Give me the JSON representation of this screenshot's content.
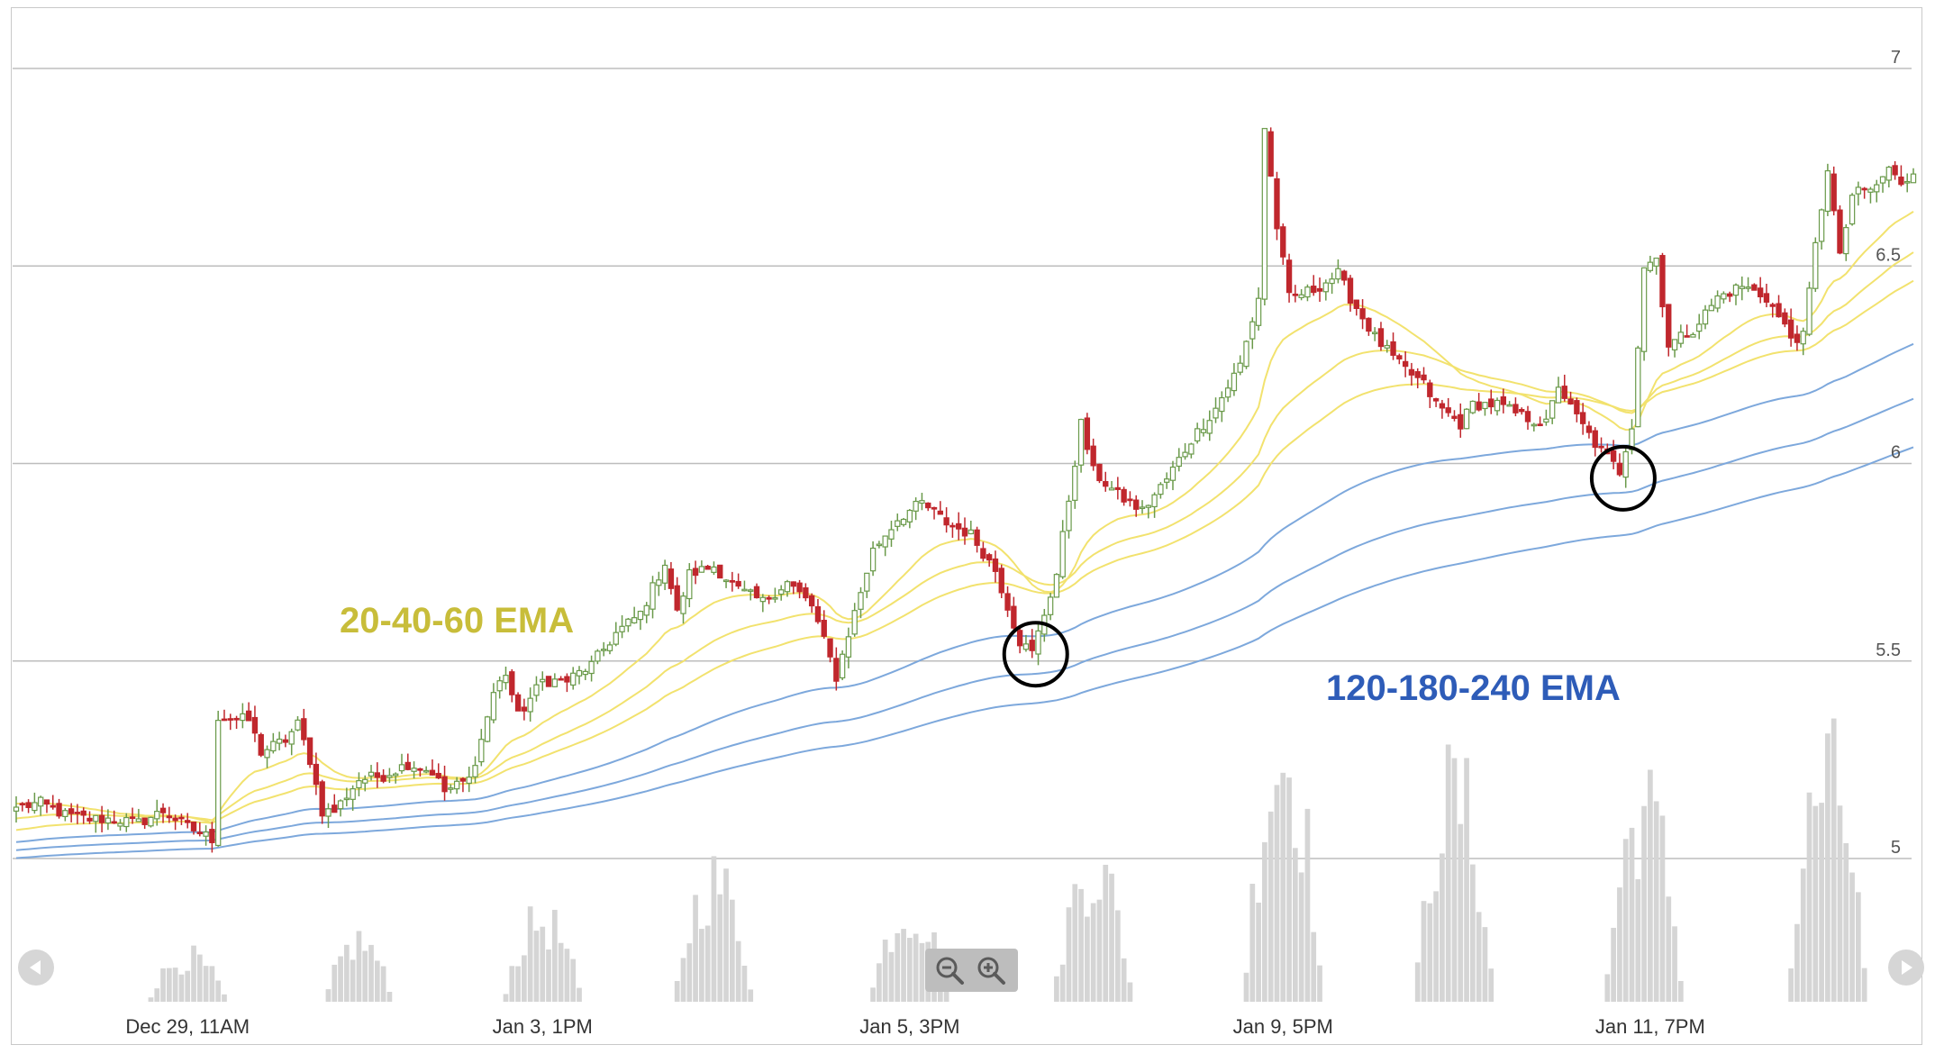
{
  "chart_data": {
    "type": "candlestick",
    "title": "",
    "xlabel": "",
    "ylabel": "",
    "ylim": [
      4.8,
      7.1
    ],
    "yticks": [
      5,
      5.5,
      6,
      6.5,
      7
    ],
    "ytick_labels": [
      "5",
      "5.5",
      "6",
      "6.5",
      "7"
    ],
    "xtick_labels": [
      {
        "label": "Dec 29, 11AM",
        "index": 28
      },
      {
        "label": "Jan 3, 1PM",
        "index": 86
      },
      {
        "label": "Jan 5, 3PM",
        "index": 146
      },
      {
        "label": "Jan 9, 5PM",
        "index": 207
      },
      {
        "label": "Jan 11, 7PM",
        "index": 267
      }
    ],
    "grid": true,
    "ohlc_anchor_closes": [
      [
        0,
        5.13
      ],
      [
        4,
        5.14
      ],
      [
        8,
        5.11
      ],
      [
        12,
        5.1
      ],
      [
        16,
        5.1
      ],
      [
        20,
        5.09
      ],
      [
        24,
        5.12
      ],
      [
        28,
        5.08
      ],
      [
        32,
        5.05
      ],
      [
        33,
        5.36
      ],
      [
        38,
        5.35
      ],
      [
        40,
        5.27
      ],
      [
        44,
        5.3
      ],
      [
        46,
        5.34
      ],
      [
        48,
        5.25
      ],
      [
        50,
        5.12
      ],
      [
        52,
        5.12
      ],
      [
        56,
        5.2
      ],
      [
        60,
        5.21
      ],
      [
        64,
        5.24
      ],
      [
        68,
        5.22
      ],
      [
        70,
        5.17
      ],
      [
        74,
        5.2
      ],
      [
        76,
        5.3
      ],
      [
        78,
        5.42
      ],
      [
        80,
        5.47
      ],
      [
        82,
        5.36
      ],
      [
        86,
        5.45
      ],
      [
        90,
        5.45
      ],
      [
        94,
        5.49
      ],
      [
        98,
        5.57
      ],
      [
        102,
        5.62
      ],
      [
        106,
        5.75
      ],
      [
        108,
        5.62
      ],
      [
        110,
        5.72
      ],
      [
        114,
        5.74
      ],
      [
        118,
        5.68
      ],
      [
        122,
        5.65
      ],
      [
        126,
        5.7
      ],
      [
        130,
        5.64
      ],
      [
        134,
        5.46
      ],
      [
        136,
        5.57
      ],
      [
        140,
        5.78
      ],
      [
        144,
        5.86
      ],
      [
        148,
        5.9
      ],
      [
        152,
        5.85
      ],
      [
        156,
        5.82
      ],
      [
        160,
        5.73
      ],
      [
        164,
        5.55
      ],
      [
        166,
        5.52
      ],
      [
        170,
        5.72
      ],
      [
        174,
        6.1
      ],
      [
        176,
        5.98
      ],
      [
        180,
        5.92
      ],
      [
        184,
        5.88
      ],
      [
        188,
        5.96
      ],
      [
        192,
        6.06
      ],
      [
        196,
        6.14
      ],
      [
        200,
        6.25
      ],
      [
        203,
        6.42
      ],
      [
        204,
        6.85
      ],
      [
        206,
        6.6
      ],
      [
        208,
        6.42
      ],
      [
        212,
        6.44
      ],
      [
        216,
        6.48
      ],
      [
        218,
        6.42
      ],
      [
        222,
        6.32
      ],
      [
        226,
        6.25
      ],
      [
        230,
        6.2
      ],
      [
        232,
        6.15
      ],
      [
        236,
        6.1
      ],
      [
        238,
        6.15
      ],
      [
        242,
        6.15
      ],
      [
        246,
        6.12
      ],
      [
        250,
        6.1
      ],
      [
        252,
        6.2
      ],
      [
        254,
        6.14
      ],
      [
        258,
        6.05
      ],
      [
        262,
        5.98
      ],
      [
        264,
        6.1
      ],
      [
        266,
        6.5
      ],
      [
        268,
        6.52
      ],
      [
        270,
        6.3
      ],
      [
        274,
        6.34
      ],
      [
        278,
        6.42
      ],
      [
        282,
        6.45
      ],
      [
        286,
        6.42
      ],
      [
        290,
        6.32
      ],
      [
        292,
        6.32
      ],
      [
        294,
        6.55
      ],
      [
        296,
        6.75
      ],
      [
        298,
        6.52
      ],
      [
        300,
        6.68
      ],
      [
        304,
        6.7
      ],
      [
        306,
        6.75
      ],
      [
        308,
        6.7
      ],
      [
        310,
        6.74
      ]
    ],
    "bar_count": 311,
    "series": [
      {
        "name": "20-40-60 EMA",
        "kind": "ema",
        "periods": [
          20,
          40,
          60
        ],
        "color": "#f2e26e"
      },
      {
        "name": "120-180-240 EMA",
        "kind": "ema",
        "periods": [
          120,
          180,
          240
        ],
        "color": "#7da8dc"
      }
    ],
    "ema_start_offsets": {
      "20": 0.01,
      "40": -0.03,
      "60": -0.06,
      "120": -0.09,
      "180": -0.11,
      "240": -0.13
    },
    "volume_clusters": [
      {
        "center": 28,
        "peak": 0.11,
        "width": 6
      },
      {
        "center": 56,
        "peak": 0.15,
        "width": 5
      },
      {
        "center": 86,
        "peak": 0.2,
        "width": 6
      },
      {
        "center": 114,
        "peak": 0.3,
        "width": 6
      },
      {
        "center": 146,
        "peak": 0.23,
        "width": 6
      },
      {
        "center": 176,
        "peak": 0.34,
        "width": 6
      },
      {
        "center": 207,
        "peak": 0.62,
        "width": 6
      },
      {
        "center": 235,
        "peak": 0.52,
        "width": 6
      },
      {
        "center": 266,
        "peak": 0.48,
        "width": 6
      },
      {
        "center": 296,
        "peak": 0.56,
        "width": 6
      }
    ],
    "highlighted_bars": [
      166,
      262
    ],
    "colors": {
      "up": "#6a9a4a",
      "up_fill": "#ffffff",
      "down": "#c0272d",
      "grid": "#bdbdbd",
      "volume": "#d5d5d5",
      "circle": "#000000"
    },
    "annotations": [
      {
        "text": "20-40-60 EMA",
        "color": "#c8bd3a"
      },
      {
        "text": "120-180-240 EMA",
        "color": "#2e5cb8"
      }
    ]
  },
  "controls": {
    "scroll_left_icon": "arrow-left-icon",
    "scroll_right_icon": "arrow-right-icon",
    "zoom_out_icon": "zoom-out-icon",
    "zoom_in_icon": "zoom-in-icon"
  }
}
